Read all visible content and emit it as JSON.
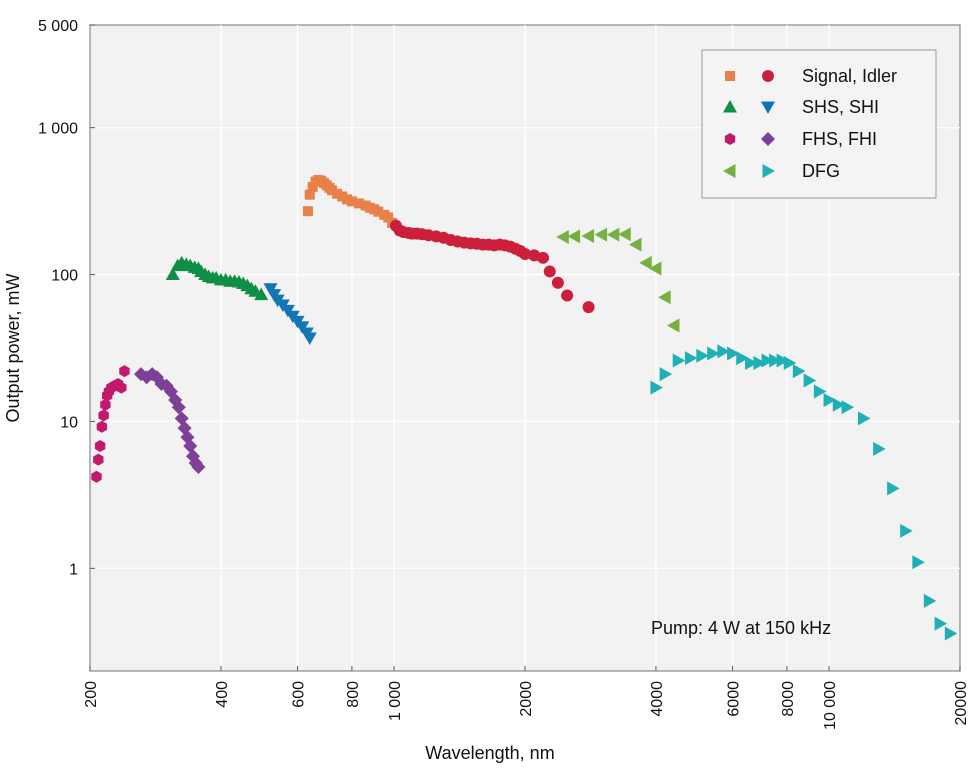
{
  "chart_data": {
    "type": "scatter",
    "title": "",
    "xlabel": "Wavelength, nm",
    "ylabel": "Output power, mW",
    "xscale": "log",
    "yscale": "log",
    "xlim": [
      200,
      20000
    ],
    "ylim": [
      0.2,
      5000
    ],
    "grid": true,
    "legend_position": "top-right",
    "x_ticks": [
      {
        "value": 200,
        "label": "200"
      },
      {
        "value": 400,
        "label": "400"
      },
      {
        "value": 600,
        "label": "600"
      },
      {
        "value": 800,
        "label": "800"
      },
      {
        "value": 1000,
        "label": "1 000"
      },
      {
        "value": 2000,
        "label": "2000"
      },
      {
        "value": 4000,
        "label": "4000"
      },
      {
        "value": 6000,
        "label": "6000"
      },
      {
        "value": 8000,
        "label": "8000"
      },
      {
        "value": 10000,
        "label": "10 000"
      },
      {
        "value": 20000,
        "label": "20000"
      }
    ],
    "y_ticks": [
      {
        "value": 1,
        "label": "1"
      },
      {
        "value": 10,
        "label": "10"
      },
      {
        "value": 100,
        "label": "100"
      },
      {
        "value": 1000,
        "label": "1 000"
      },
      {
        "value": 5000,
        "label": "5 000"
      }
    ],
    "legend": [
      {
        "label": "Signal, Idler",
        "markers": [
          {
            "shape": "square",
            "color": "#e8804a"
          },
          {
            "shape": "circle",
            "color": "#cc1f3c"
          }
        ]
      },
      {
        "label": "SHS, SHI",
        "markers": [
          {
            "shape": "triangle-up",
            "color": "#0f8f45"
          },
          {
            "shape": "triangle-down",
            "color": "#1276b5"
          }
        ]
      },
      {
        "label": "FHS, FHI",
        "markers": [
          {
            "shape": "hexagon",
            "color": "#c2186e"
          },
          {
            "shape": "diamond",
            "color": "#7e3f98"
          }
        ]
      },
      {
        "label": "DFG",
        "markers": [
          {
            "shape": "triangle-left",
            "color": "#76b043"
          },
          {
            "shape": "triangle-right",
            "color": "#1fb0b5"
          }
        ]
      }
    ],
    "annotations": [
      {
        "text": "Pump: 4 W at 150 kHz"
      }
    ],
    "series": [
      {
        "key": "signal",
        "marker": "square",
        "color": "#e8804a",
        "points": [
          [
            634,
            270
          ],
          [
            640,
            350
          ],
          [
            650,
            395
          ],
          [
            660,
            430
          ],
          [
            670,
            440
          ],
          [
            680,
            435
          ],
          [
            690,
            420
          ],
          [
            700,
            405
          ],
          [
            710,
            390
          ],
          [
            720,
            375
          ],
          [
            740,
            355
          ],
          [
            760,
            340
          ],
          [
            780,
            325
          ],
          [
            800,
            315
          ],
          [
            830,
            305
          ],
          [
            860,
            295
          ],
          [
            880,
            285
          ],
          [
            900,
            278
          ],
          [
            920,
            268
          ],
          [
            950,
            255
          ],
          [
            970,
            245
          ],
          [
            990,
            225
          ]
        ]
      },
      {
        "key": "idler",
        "marker": "circle",
        "color": "#cc1f3c",
        "points": [
          [
            1010,
            215
          ],
          [
            1030,
            200
          ],
          [
            1050,
            195
          ],
          [
            1080,
            192
          ],
          [
            1100,
            190
          ],
          [
            1130,
            190
          ],
          [
            1160,
            188
          ],
          [
            1200,
            185
          ],
          [
            1250,
            182
          ],
          [
            1300,
            178
          ],
          [
            1350,
            172
          ],
          [
            1400,
            168
          ],
          [
            1450,
            165
          ],
          [
            1500,
            163
          ],
          [
            1550,
            162
          ],
          [
            1600,
            160
          ],
          [
            1650,
            160
          ],
          [
            1700,
            158
          ],
          [
            1750,
            160
          ],
          [
            1800,
            158
          ],
          [
            1850,
            155
          ],
          [
            1900,
            150
          ],
          [
            1950,
            145
          ],
          [
            2000,
            138
          ],
          [
            2100,
            135
          ],
          [
            2200,
            130
          ],
          [
            2280,
            105
          ],
          [
            2380,
            88
          ],
          [
            2500,
            72
          ],
          [
            2800,
            60
          ]
        ]
      },
      {
        "key": "shs",
        "marker": "triangle-up",
        "color": "#0f8f45",
        "points": [
          [
            310,
            100
          ],
          [
            318,
            115
          ],
          [
            325,
            120
          ],
          [
            333,
            117
          ],
          [
            340,
            115
          ],
          [
            348,
            112
          ],
          [
            355,
            110
          ],
          [
            360,
            105
          ],
          [
            368,
            100
          ],
          [
            375,
            97
          ],
          [
            383,
            95
          ],
          [
            390,
            95
          ],
          [
            400,
            92
          ],
          [
            410,
            92
          ],
          [
            420,
            90
          ],
          [
            430,
            90
          ],
          [
            440,
            89
          ],
          [
            450,
            87
          ],
          [
            460,
            84
          ],
          [
            470,
            80
          ],
          [
            480,
            77
          ],
          [
            495,
            73
          ]
        ]
      },
      {
        "key": "shi",
        "marker": "triangle-down",
        "color": "#1276b5",
        "points": [
          [
            520,
            80
          ],
          [
            530,
            73
          ],
          [
            540,
            67
          ],
          [
            555,
            62
          ],
          [
            570,
            57
          ],
          [
            585,
            52
          ],
          [
            600,
            48
          ],
          [
            615,
            44
          ],
          [
            630,
            40
          ],
          [
            640,
            37
          ]
        ]
      },
      {
        "key": "fhs",
        "marker": "hexagon",
        "color": "#c2186e",
        "points": [
          [
            207,
            4.2
          ],
          [
            209,
            5.5
          ],
          [
            211,
            6.8
          ],
          [
            213,
            9.2
          ],
          [
            215,
            11
          ],
          [
            217,
            13
          ],
          [
            219,
            15
          ],
          [
            221,
            16
          ],
          [
            224,
            17
          ],
          [
            228,
            17.5
          ],
          [
            232,
            18
          ],
          [
            236,
            17
          ],
          [
            240,
            22
          ]
        ]
      },
      {
        "key": "fhi",
        "marker": "diamond",
        "color": "#7e3f98",
        "points": [
          [
            262,
            21
          ],
          [
            270,
            20
          ],
          [
            278,
            21
          ],
          [
            285,
            20
          ],
          [
            292,
            18
          ],
          [
            300,
            17.5
          ],
          [
            307,
            16
          ],
          [
            314,
            14
          ],
          [
            320,
            12.5
          ],
          [
            325,
            10.5
          ],
          [
            330,
            9
          ],
          [
            335,
            7.8
          ],
          [
            340,
            6.8
          ],
          [
            345,
            5.8
          ],
          [
            350,
            5.2
          ],
          [
            355,
            4.9
          ]
        ]
      },
      {
        "key": "dfg-left",
        "marker": "triangle-left",
        "color": "#76b043",
        "points": [
          [
            2450,
            180
          ],
          [
            2600,
            182
          ],
          [
            2800,
            183
          ],
          [
            3000,
            187
          ],
          [
            3200,
            187
          ],
          [
            3400,
            188
          ],
          [
            3600,
            160
          ],
          [
            3800,
            120
          ],
          [
            4000,
            110
          ],
          [
            4200,
            70
          ],
          [
            4400,
            45
          ]
        ]
      },
      {
        "key": "dfg-right",
        "marker": "triangle-right",
        "color": "#1fb0b5",
        "points": [
          [
            4000,
            17
          ],
          [
            4200,
            21
          ],
          [
            4500,
            26
          ],
          [
            4800,
            27
          ],
          [
            5100,
            28
          ],
          [
            5400,
            29
          ],
          [
            5700,
            30
          ],
          [
            6000,
            29
          ],
          [
            6300,
            27
          ],
          [
            6600,
            25
          ],
          [
            6900,
            25
          ],
          [
            7200,
            26
          ],
          [
            7500,
            26
          ],
          [
            7800,
            26
          ],
          [
            8100,
            25
          ],
          [
            8500,
            22
          ],
          [
            9000,
            19
          ],
          [
            9500,
            16
          ],
          [
            10000,
            14
          ],
          [
            10500,
            13
          ],
          [
            11000,
            12.5
          ],
          [
            12000,
            10.5
          ],
          [
            13000,
            6.5
          ],
          [
            14000,
            3.5
          ],
          [
            15000,
            1.8
          ],
          [
            16000,
            1.1
          ],
          [
            17000,
            0.6
          ],
          [
            18000,
            0.42
          ],
          [
            19000,
            0.36
          ]
        ]
      }
    ]
  }
}
